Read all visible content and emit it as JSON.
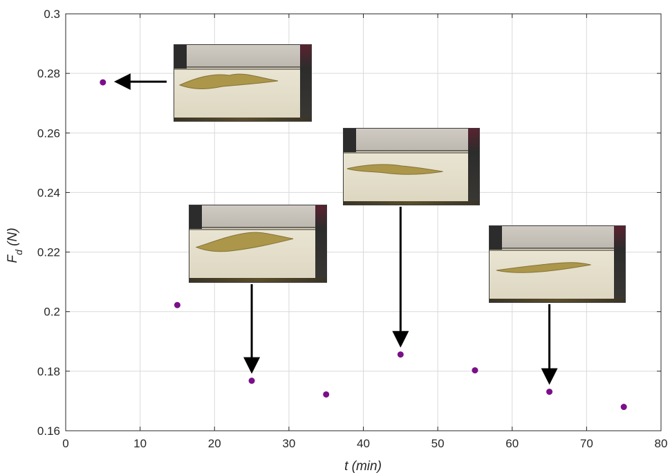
{
  "chart_data": {
    "type": "scatter",
    "title": "",
    "xlabel": "t (min)",
    "ylabel_main": "F",
    "ylabel_sub": "d",
    "ylabel_unit": " (N)",
    "xlim": [
      0,
      80
    ],
    "ylim": [
      0.16,
      0.3
    ],
    "x_ticks": [
      "0",
      "10",
      "20",
      "30",
      "40",
      "50",
      "60",
      "70",
      "80"
    ],
    "y_ticks": [
      "0.16",
      "0.18",
      "0.2",
      "0.22",
      "0.24",
      "0.26",
      "0.28",
      "0.3"
    ],
    "grid": true,
    "marker_color": "#7b0f8a",
    "series": [
      {
        "x": [
          5,
          15,
          25,
          35,
          45,
          55,
          65,
          75
        ],
        "y": [
          0.277,
          0.2022,
          0.1768,
          0.1722,
          0.1856,
          0.1803,
          0.1731,
          0.168
        ]
      }
    ],
    "annotations": [
      {
        "kind": "photo-inset",
        "points_to": {
          "x": 5,
          "y": 0.277
        }
      },
      {
        "kind": "photo-inset",
        "points_to": {
          "x": 25,
          "y": 0.1768
        }
      },
      {
        "kind": "photo-inset",
        "points_to": {
          "x": 45,
          "y": 0.1856
        }
      },
      {
        "kind": "photo-inset",
        "points_to": {
          "x": 65,
          "y": 0.1731
        }
      }
    ]
  }
}
